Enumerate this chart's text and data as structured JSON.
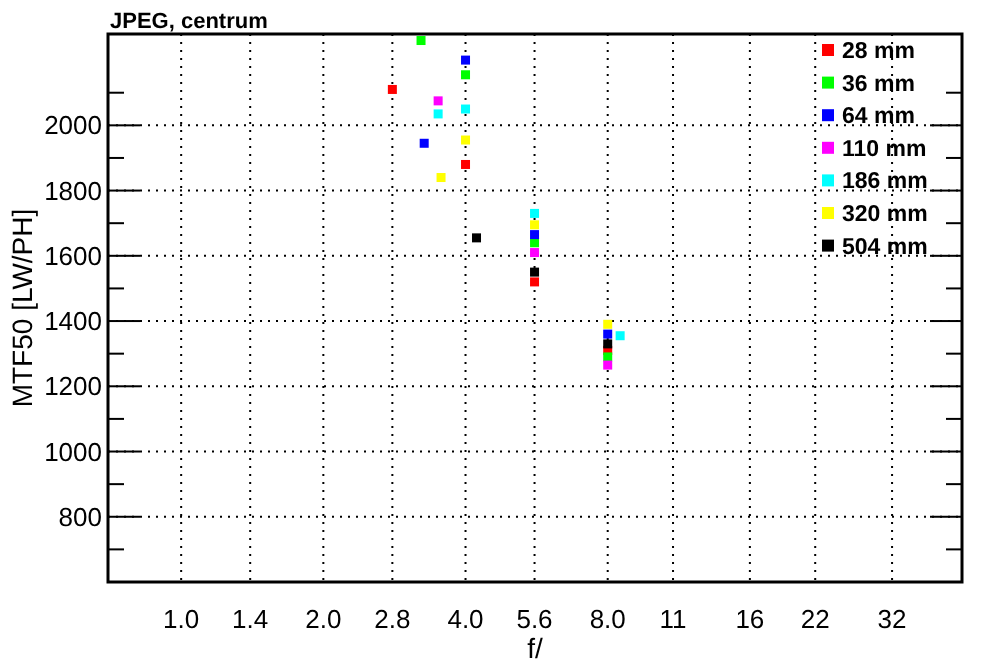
{
  "chart_data": {
    "type": "scatter",
    "title": "JPEG, centrum",
    "xlabel": "f/",
    "ylabel": "MTF50 [LW/PH]",
    "log": "x",
    "xlim": [
      0.7,
      45
    ],
    "xticks": [
      {
        "value": 1,
        "label": "1.0"
      },
      1.4,
      {
        "value": 2,
        "label": "2.0"
      },
      2.8,
      {
        "value": 4,
        "label": "4.0"
      },
      5.6,
      {
        "value": 8,
        "label": "8.0"
      },
      11,
      16,
      22,
      32
    ],
    "ylim": [
      600,
      2280
    ],
    "yticks": [
      {
        "value": 700,
        "label": null
      },
      800,
      {
        "value": 900,
        "label": null
      },
      1000,
      {
        "value": 1100,
        "label": null
      },
      1200,
      {
        "value": 1300,
        "label": null
      },
      1400,
      {
        "value": 1500,
        "label": null
      },
      1600,
      {
        "value": 1700,
        "label": null
      },
      1800,
      {
        "value": 1900,
        "label": null
      },
      2000,
      {
        "value": 2100,
        "label": null
      }
    ],
    "grid": true,
    "legend": "top right",
    "marker": "square",
    "series": [
      {
        "name": "28 mm",
        "color": "#ff0000",
        "x": [
          2.8,
          4,
          5.6,
          8
        ],
        "values": [
          2110,
          1880,
          1520,
          1310
        ]
      },
      {
        "name": "36 mm",
        "color": "#00ff00",
        "x": [
          3.22,
          4,
          5.6,
          8
        ],
        "values": [
          2260,
          2155,
          1640,
          1290
        ]
      },
      {
        "name": "64 mm",
        "color": "#0000ff",
        "x": [
          3.27,
          4,
          5.6,
          8
        ],
        "values": [
          1945,
          2200,
          1665,
          1360
        ]
      },
      {
        "name": "110 mm",
        "color": "#ff00ff",
        "x": [
          3.5,
          5.6,
          8
        ],
        "values": [
          2075,
          1610,
          1265
        ]
      },
      {
        "name": "186 mm",
        "color": "#00ffff",
        "x": [
          3.5,
          4,
          5.6,
          8.5
        ],
        "values": [
          2035,
          2050,
          1730,
          1355
        ]
      },
      {
        "name": "320 mm",
        "color": "#ffff00",
        "x": [
          3.55,
          4,
          5.6,
          8
        ],
        "values": [
          1840,
          1955,
          1695,
          1390
        ]
      },
      {
        "name": "504 mm",
        "color": "#000000",
        "x": [
          4.22,
          5.6,
          8
        ],
        "values": [
          1655,
          1550,
          1330
        ]
      }
    ]
  }
}
